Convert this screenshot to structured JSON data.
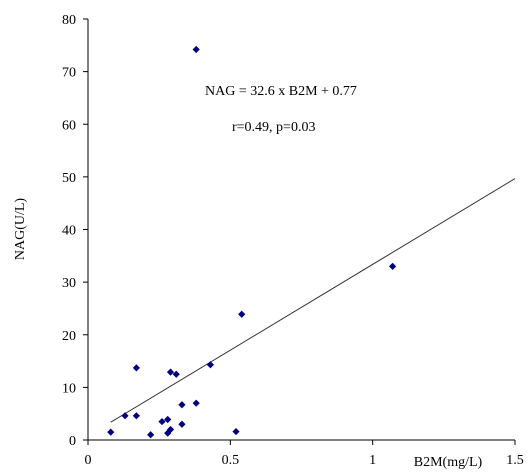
{
  "chart_data": {
    "type": "scatter",
    "title": "",
    "xlabel": "B2M(mg/L)",
    "ylabel": "NAG(U/L)",
    "xlim": [
      0,
      1.5
    ],
    "ylim": [
      0,
      80
    ],
    "x_ticks": [
      0,
      0.5,
      1,
      1.5
    ],
    "x_tick_labels": [
      "0",
      "0.5",
      "1",
      "1.5"
    ],
    "y_ticks": [
      0,
      10,
      20,
      30,
      40,
      50,
      60,
      70,
      80
    ],
    "y_tick_labels": [
      "0",
      "10",
      "20",
      "30",
      "40",
      "50",
      "60",
      "70",
      "80"
    ],
    "grid": false,
    "legend": "none",
    "marker_color": "#000080",
    "line_color": "#333333",
    "series": [
      {
        "points": [
          {
            "x": 0.08,
            "y": 1.5
          },
          {
            "x": 0.13,
            "y": 4.6
          },
          {
            "x": 0.17,
            "y": 4.6
          },
          {
            "x": 0.17,
            "y": 13.7
          },
          {
            "x": 0.22,
            "y": 1.0
          },
          {
            "x": 0.26,
            "y": 3.5
          },
          {
            "x": 0.28,
            "y": 3.9
          },
          {
            "x": 0.28,
            "y": 1.3
          },
          {
            "x": 0.29,
            "y": 2.0
          },
          {
            "x": 0.29,
            "y": 12.9
          },
          {
            "x": 0.31,
            "y": 12.5
          },
          {
            "x": 0.33,
            "y": 3.0
          },
          {
            "x": 0.33,
            "y": 6.7
          },
          {
            "x": 0.38,
            "y": 74.2
          },
          {
            "x": 0.38,
            "y": 7.0
          },
          {
            "x": 0.43,
            "y": 14.3
          },
          {
            "x": 0.52,
            "y": 1.6
          },
          {
            "x": 0.54,
            "y": 23.9
          },
          {
            "x": 1.07,
            "y": 33.0
          }
        ]
      }
    ],
    "trendline": {
      "slope": 32.6,
      "intercept": 0.77,
      "x_range": [
        0.08,
        1.5
      ]
    },
    "annotations": [
      "NAG = 32.6 x B2M  + 0.77",
      "r=0.49, p=0.03"
    ]
  }
}
